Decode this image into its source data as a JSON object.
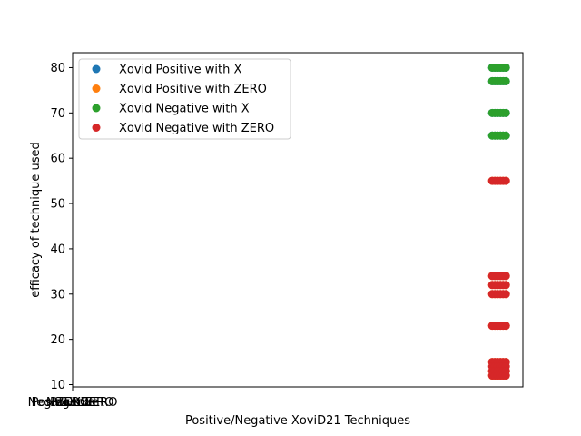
{
  "chart_data": {
    "type": "scatter",
    "title": "",
    "xlabel": "Positive/Negative XoviD21 Techniques",
    "ylabel": "efficacy of technique used",
    "x_tick_labels": [
      "Negative",
      "Positive",
      "Negative ZERO",
      "Positive ZERO",
      "X",
      "ZERO"
    ],
    "y_ticks": [
      10,
      20,
      30,
      40,
      50,
      60,
      70,
      80
    ],
    "ylim": [
      9.5,
      83.3
    ],
    "xlim": [
      0,
      1
    ],
    "grid": false,
    "legend_position": "top-left",
    "series": [
      {
        "name": "Xovid Positive with X",
        "color": "#1f77b4",
        "points": [
          {
            "x": 0.95,
            "y": 80
          },
          {
            "x": 0.95,
            "y": 77
          },
          {
            "x": 0.95,
            "y": 70
          },
          {
            "x": 0.95,
            "y": 65
          }
        ]
      },
      {
        "name": "Xovid Positive with ZERO",
        "color": "#ff7f0e",
        "points": [
          {
            "x": 0.95,
            "y": 55
          },
          {
            "x": 0.95,
            "y": 34
          },
          {
            "x": 0.95,
            "y": 32
          },
          {
            "x": 0.95,
            "y": 30
          },
          {
            "x": 0.95,
            "y": 23
          },
          {
            "x": 0.95,
            "y": 15
          },
          {
            "x": 0.95,
            "y": 13
          },
          {
            "x": 0.95,
            "y": 12
          }
        ]
      },
      {
        "name": "Xovid Negative with X",
        "color": "#2ca02c",
        "points": [
          {
            "x": 0.95,
            "y": 80
          },
          {
            "x": 0.95,
            "y": 77
          },
          {
            "x": 0.95,
            "y": 70
          },
          {
            "x": 0.95,
            "y": 65
          }
        ]
      },
      {
        "name": "Xovid Negative with ZERO",
        "color": "#d62728",
        "points": [
          {
            "x": 0.95,
            "y": 55
          },
          {
            "x": 0.95,
            "y": 34
          },
          {
            "x": 0.95,
            "y": 32
          },
          {
            "x": 0.95,
            "y": 30
          },
          {
            "x": 0.95,
            "y": 23
          },
          {
            "x": 0.95,
            "y": 15
          },
          {
            "x": 0.95,
            "y": 14
          },
          {
            "x": 0.95,
            "y": 13
          },
          {
            "x": 0.95,
            "y": 12
          }
        ]
      }
    ]
  }
}
